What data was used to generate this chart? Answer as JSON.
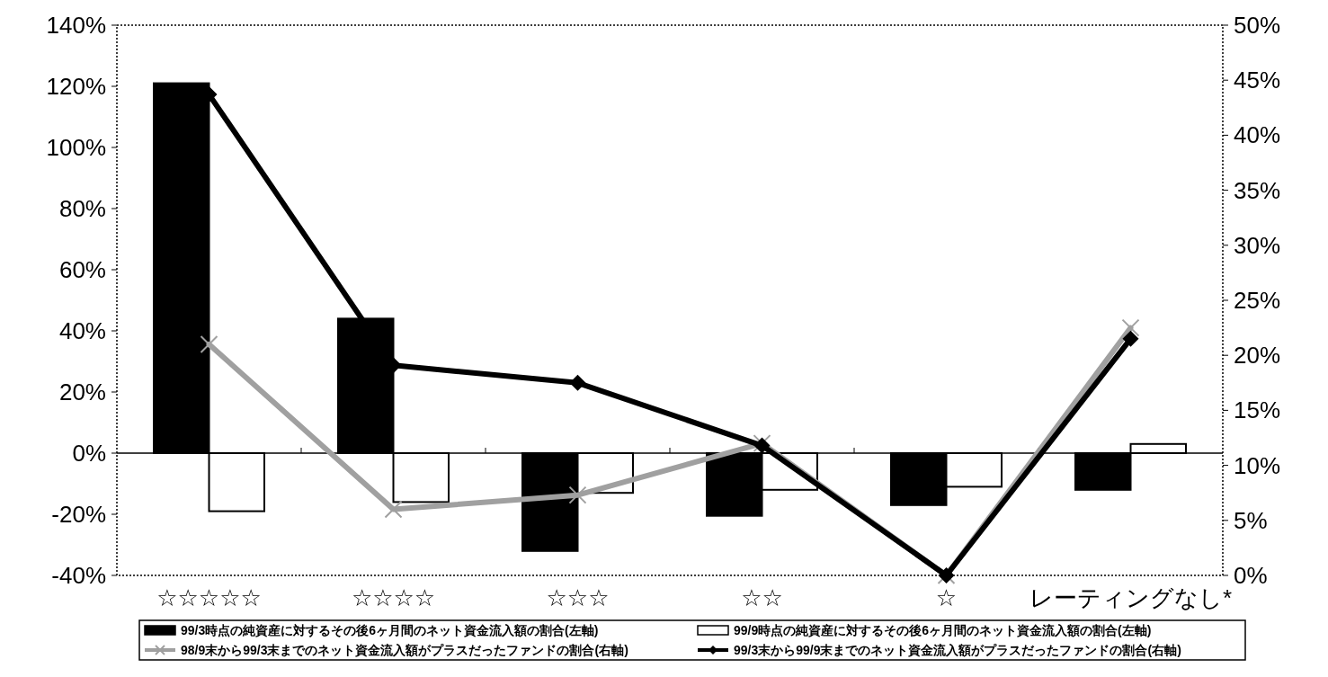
{
  "chart_data": {
    "type": "bar",
    "categories": [
      "☆☆☆☆☆",
      "☆☆☆☆",
      "☆☆☆",
      "☆☆",
      "☆",
      "レーティングなし*"
    ],
    "series": [
      {
        "name": "99/3時点の純資産に対するその後6ヶ月間のネット資金流入額の割合(左軸)",
        "color": "#000000",
        "values": [
          121,
          44,
          -32,
          -20.5,
          -17,
          -12
        ]
      },
      {
        "name": "99/9時点の純資産に対するその後6ヶ月間のネット資金流入額の割合(左軸)",
        "color": "#ffffff",
        "values": [
          -19,
          -16,
          -13,
          -12,
          -11,
          3
        ]
      },
      {
        "name": "98/9末から99/3末までのネット資金流入額がプラスだったファンドの割合(右軸)",
        "type": "line",
        "axis": "y2",
        "color": "#a0a0a0",
        "marker": "cross",
        "values": [
          21,
          6,
          7.3,
          12,
          0,
          22.5
        ]
      },
      {
        "name": "99/3末から99/9末までのネット資金流入額がプラスだったファンドの割合(右軸)",
        "type": "line",
        "axis": "y2",
        "color": "#000000",
        "marker": "diamond",
        "values": [
          43.7,
          19.1,
          17.5,
          11.8,
          0,
          21.5
        ]
      }
    ],
    "ylim": [
      -40,
      140
    ],
    "yticks": [
      {
        "value": -40,
        "label": "-40%"
      },
      {
        "value": -20,
        "label": "-20%"
      },
      {
        "value": 0,
        "label": "0%"
      },
      {
        "value": 20,
        "label": "20%"
      },
      {
        "value": 40,
        "label": "40%"
      },
      {
        "value": 60,
        "label": "60%"
      },
      {
        "value": 80,
        "label": "80%"
      },
      {
        "value": 100,
        "label": "100%"
      },
      {
        "value": 120,
        "label": "120%"
      },
      {
        "value": 140,
        "label": "140%"
      }
    ],
    "y2lim": [
      0,
      50
    ],
    "y2ticks": [
      {
        "value": 0,
        "label": "0%"
      },
      {
        "value": 5,
        "label": "5%"
      },
      {
        "value": 10,
        "label": "10%"
      },
      {
        "value": 15,
        "label": "15%"
      },
      {
        "value": 20,
        "label": "20%"
      },
      {
        "value": 25,
        "label": "25%"
      },
      {
        "value": 30,
        "label": "30%"
      },
      {
        "value": 35,
        "label": "35%"
      },
      {
        "value": 40,
        "label": "40%"
      },
      {
        "value": 45,
        "label": "45%"
      },
      {
        "value": 50,
        "label": "50%"
      }
    ],
    "legend": "bottom"
  }
}
